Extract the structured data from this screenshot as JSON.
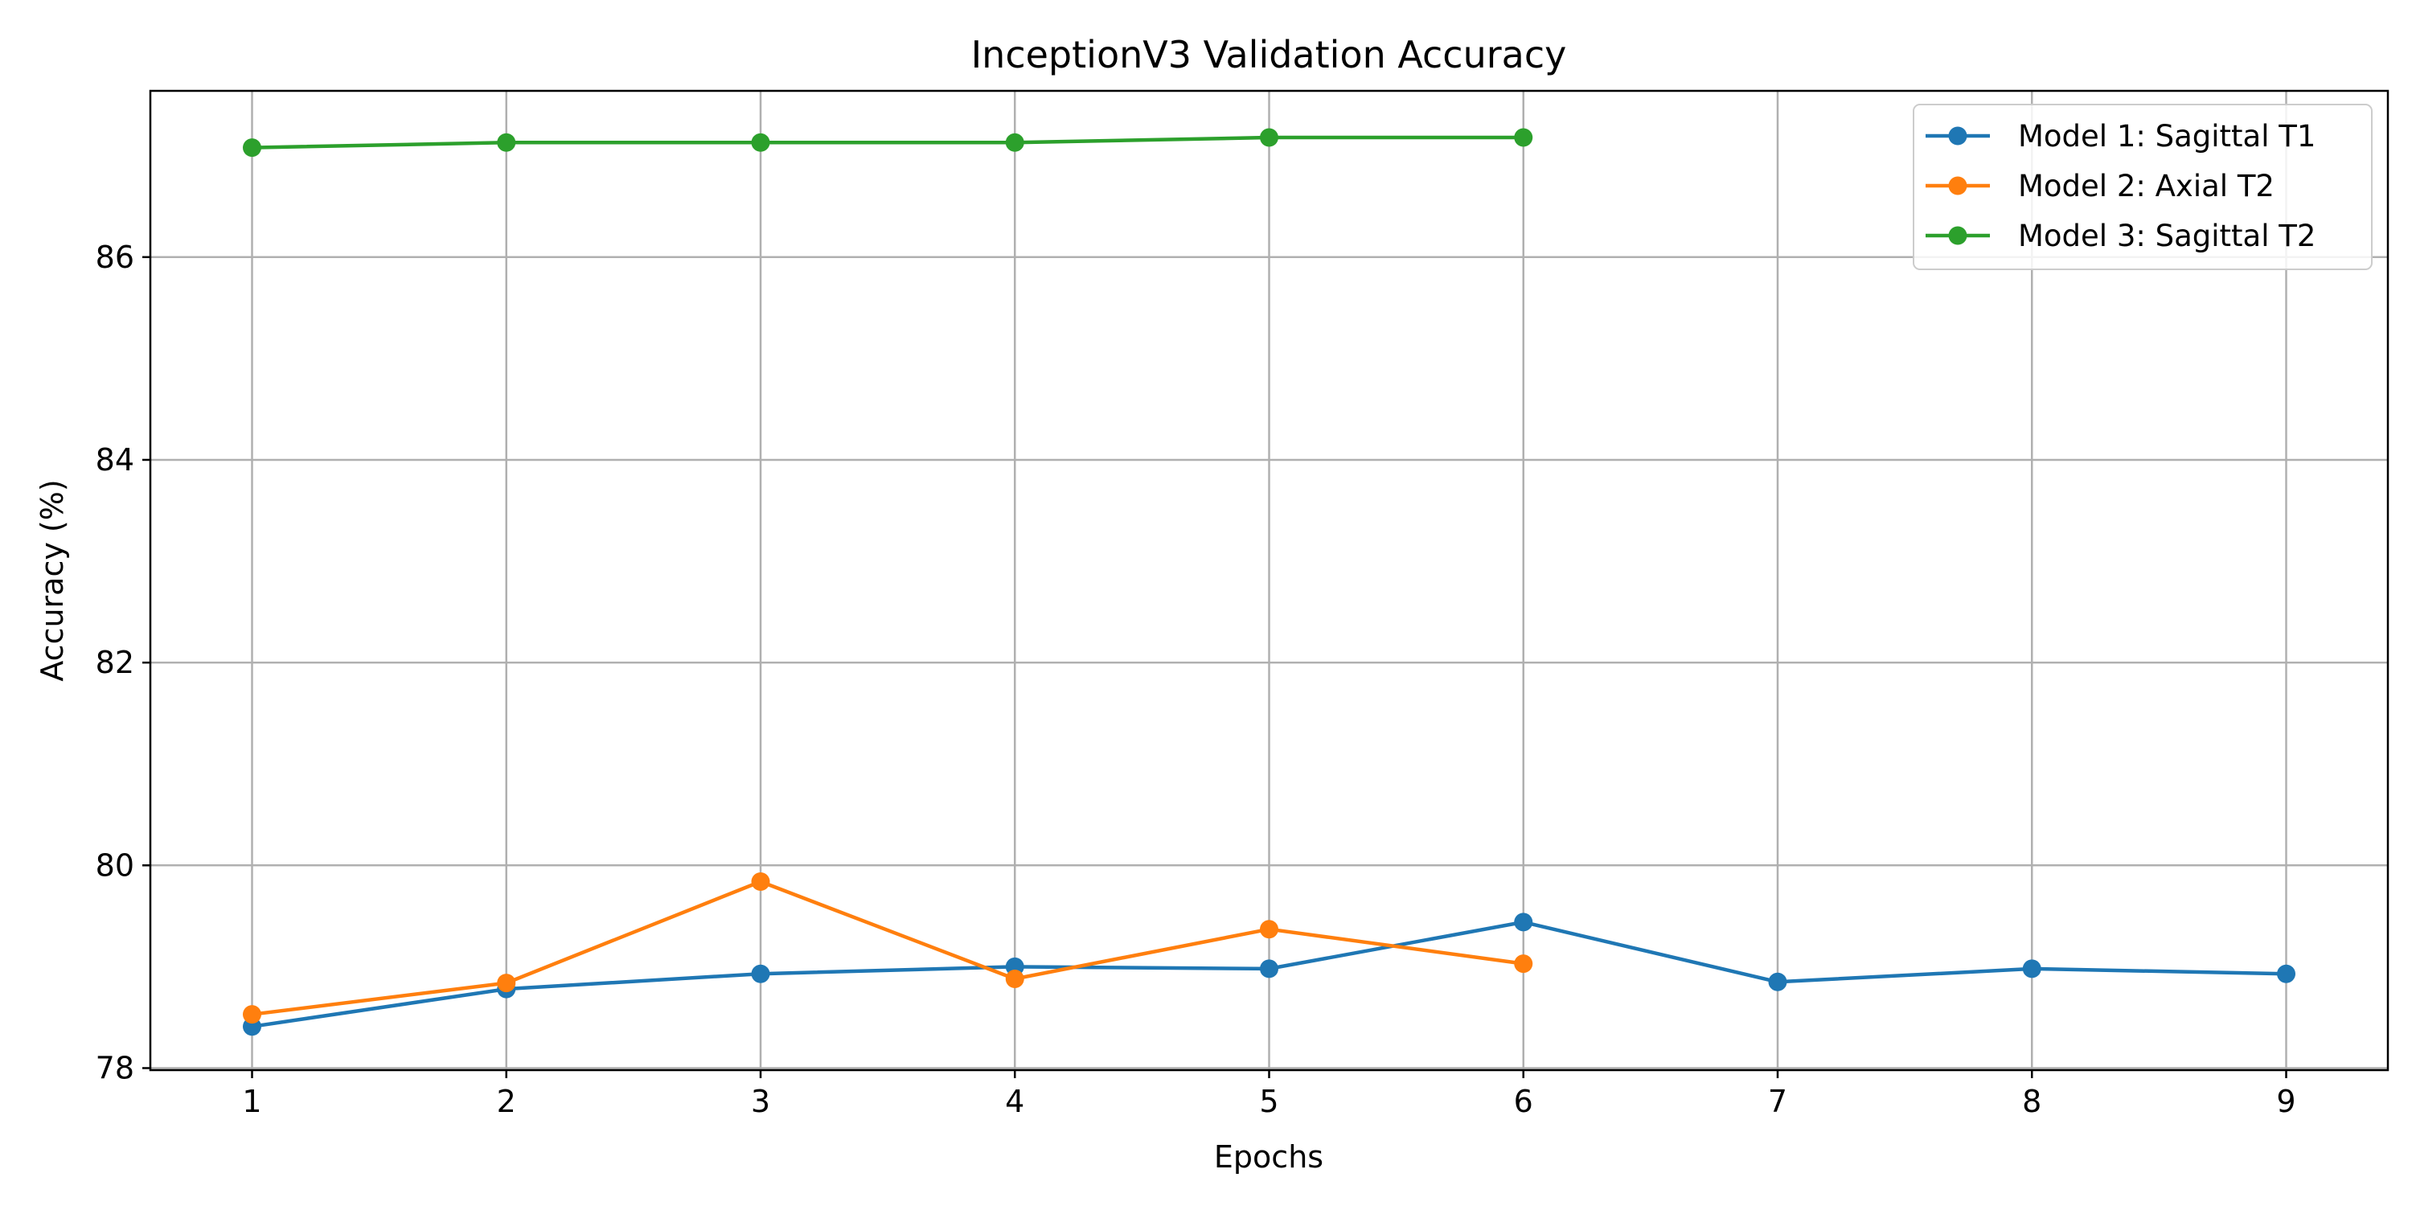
{
  "chart_data": {
    "type": "line",
    "title": "InceptionV3 Validation Accuracy",
    "xlabel": "Epochs",
    "ylabel": "Accuracy (%)",
    "xlim": [
      0.6,
      9.4
    ],
    "ylim": [
      77.98,
      87.64
    ],
    "xticks": [
      1,
      2,
      3,
      4,
      5,
      6,
      7,
      8,
      9
    ],
    "yticks": [
      78,
      80,
      82,
      84,
      86
    ],
    "grid": true,
    "legend_position": "top-right",
    "series": [
      {
        "name": "Model 1: Sagittal T1",
        "color": "#1f77b4",
        "x": [
          1,
          2,
          3,
          4,
          5,
          6,
          7,
          8,
          9
        ],
        "values": [
          78.41,
          78.78,
          78.93,
          79.0,
          78.98,
          79.44,
          78.85,
          78.98,
          78.93
        ]
      },
      {
        "name": "Model 2: Axial T2",
        "color": "#ff7f0e",
        "x": [
          1,
          2,
          3,
          4,
          5,
          6
        ],
        "values": [
          78.53,
          78.84,
          79.84,
          78.88,
          79.37,
          79.03
        ]
      },
      {
        "name": "Model 3: Sagittal T2",
        "color": "#2ca02c",
        "x": [
          1,
          2,
          3,
          4,
          5,
          6
        ],
        "values": [
          87.08,
          87.13,
          87.13,
          87.13,
          87.18,
          87.18
        ]
      }
    ]
  }
}
